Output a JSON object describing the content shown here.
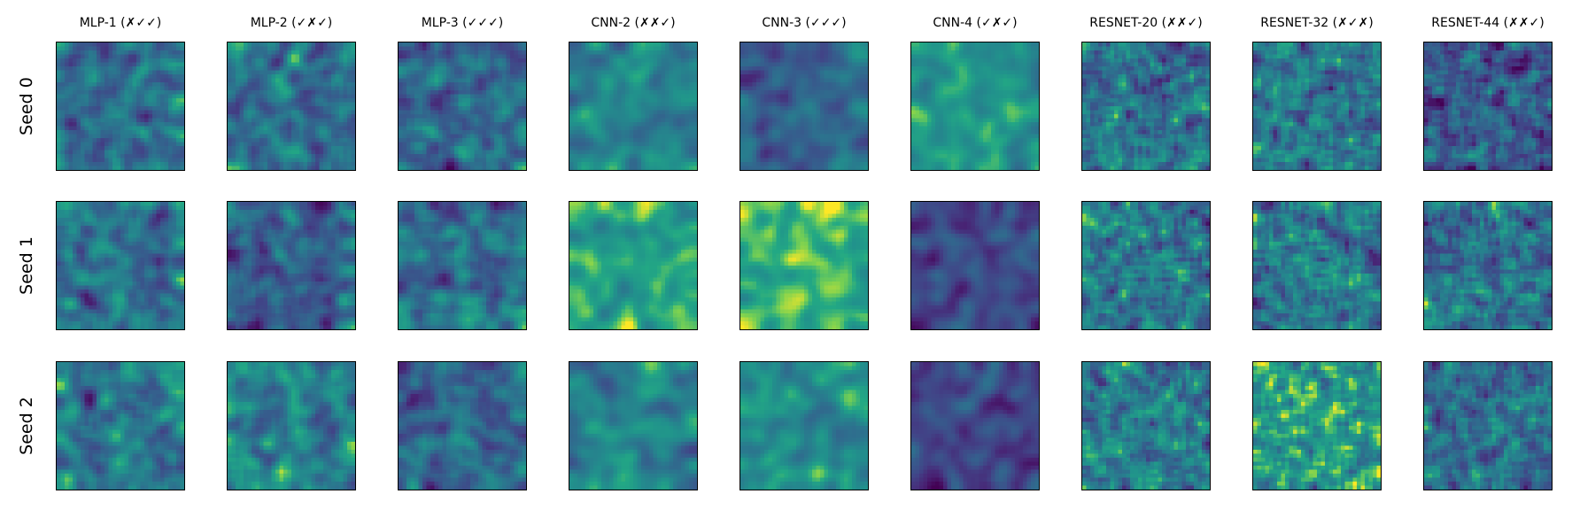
{
  "chart_data": {
    "type": "heatmap",
    "colormap": "viridis",
    "layout": "grid 3 rows x 9 columns",
    "columns": [
      "MLP-1 (✗✓✓)",
      "MLP-2 (✓✗✓)",
      "MLP-3 (✓✓✓)",
      "CNN-2 (✗✗✓)",
      "CNN-3 (✓✓✓)",
      "CNN-4 (✓✗✓)",
      "RESNET-20 (✗✗✓)",
      "RESNET-32 (✗✓✗)",
      "RESNET-44 (✗✗✓)"
    ],
    "rows": [
      "Seed 0",
      "Seed 1",
      "Seed 2"
    ],
    "axes_ticks": "none",
    "grid": false,
    "legend": "none"
  }
}
